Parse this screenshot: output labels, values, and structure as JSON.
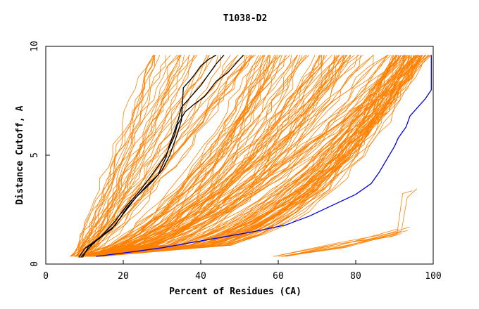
{
  "chart_data": {
    "type": "line",
    "title": "T1038-D2",
    "xlabel": "Percent of Residues (CA)",
    "ylabel": "Distance Cutoff, A",
    "xlim": [
      0,
      100
    ],
    "ylim": [
      0,
      10
    ],
    "xticks": [
      0,
      20,
      40,
      60,
      80,
      100
    ],
    "yticks": [
      0,
      5,
      10
    ],
    "grid": false,
    "legend": "none",
    "colors": {
      "background_series": "#ff8000",
      "highlight_black": "#000000",
      "highlight_blue": "#0000e0",
      "axis": "#000000"
    },
    "background_generators": {
      "left_band": {
        "count": 40,
        "x_at_0.5": [
          7,
          11
        ],
        "x_at_9.5": [
          27,
          55
        ]
      },
      "middle_band": {
        "count": 90,
        "x_at_0.5": [
          8,
          13
        ],
        "x_at_9.5": [
          55,
          100
        ]
      },
      "right_band": {
        "count": 50,
        "x_at_0.5": [
          10,
          14
        ],
        "x_at_9.5": [
          90,
          99
        ]
      },
      "bottom_group": {
        "count": 8,
        "x_at_0.35": [
          58,
          62
        ],
        "x_at_1.8": [
          88,
          94
        ]
      }
    },
    "series": [
      {
        "color": "#000000",
        "points": [
          [
            8.5,
            0.3
          ],
          [
            10,
            0.7
          ],
          [
            13,
            1.1
          ],
          [
            17,
            1.6
          ],
          [
            20,
            2.3
          ],
          [
            23,
            3.0
          ],
          [
            26,
            3.6
          ],
          [
            29,
            4.1
          ],
          [
            31,
            4.9
          ],
          [
            32,
            5.5
          ],
          [
            33,
            6.0
          ],
          [
            34,
            6.5
          ],
          [
            35,
            7.2
          ],
          [
            37,
            7.6
          ],
          [
            40,
            8.2
          ],
          [
            42,
            8.7
          ],
          [
            44,
            9.2
          ],
          [
            46,
            9.6
          ]
        ]
      },
      {
        "color": "#000000",
        "points": [
          [
            9.5,
            0.3
          ],
          [
            11,
            0.8
          ],
          [
            14,
            1.2
          ],
          [
            18,
            1.8
          ],
          [
            21,
            2.6
          ],
          [
            24,
            3.2
          ],
          [
            27,
            3.7
          ],
          [
            30,
            4.3
          ],
          [
            32,
            5.0
          ],
          [
            34,
            6.0
          ],
          [
            35,
            6.6
          ],
          [
            35.5,
            8.1
          ],
          [
            38,
            8.6
          ],
          [
            40,
            9.1
          ],
          [
            42,
            9.4
          ],
          [
            44,
            9.6
          ]
        ]
      },
      {
        "color": "#000000",
        "points": [
          [
            9,
            0.3
          ],
          [
            12,
            0.9
          ],
          [
            15,
            1.4
          ],
          [
            18,
            2.0
          ],
          [
            21,
            2.7
          ],
          [
            24,
            3.3
          ],
          [
            27,
            4.0
          ],
          [
            29,
            4.5
          ],
          [
            31,
            5.0
          ],
          [
            33,
            5.8
          ],
          [
            34,
            6.4
          ],
          [
            36,
            7.0
          ],
          [
            38,
            7.3
          ],
          [
            41,
            7.7
          ],
          [
            44,
            8.4
          ],
          [
            47,
            8.8
          ],
          [
            49,
            9.2
          ],
          [
            51,
            9.6
          ]
        ]
      },
      {
        "color": "#0000e0",
        "points": [
          [
            13,
            0.35
          ],
          [
            22,
            0.55
          ],
          [
            30,
            0.75
          ],
          [
            38,
            1.0
          ],
          [
            46,
            1.25
          ],
          [
            54,
            1.5
          ],
          [
            62,
            1.8
          ],
          [
            68,
            2.2
          ],
          [
            74,
            2.7
          ],
          [
            80,
            3.2
          ],
          [
            84,
            3.7
          ],
          [
            86,
            4.2
          ],
          [
            88,
            4.8
          ],
          [
            90,
            5.4
          ],
          [
            91,
            5.8
          ],
          [
            93,
            6.3
          ],
          [
            94,
            6.8
          ],
          [
            96,
            7.2
          ],
          [
            98,
            7.6
          ],
          [
            99.5,
            8.0
          ],
          [
            99.5,
            9.6
          ]
        ]
      }
    ]
  }
}
